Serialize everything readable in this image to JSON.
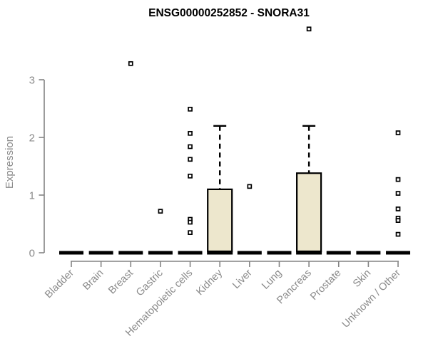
{
  "chart_data": {
    "type": "boxplot",
    "title": "ENSG00000252852 - SNORA31",
    "ylabel": "Expression",
    "xlabel": "",
    "ylim": [
      0,
      3.95
    ],
    "yticks": [
      0,
      1,
      2,
      3
    ],
    "grid": false,
    "legend": "none",
    "colors": {
      "box_fill": "#EDE7CD",
      "box_stroke": "#000000",
      "median": "#000000",
      "outlier_stroke": "#000000",
      "outlier_fill": "#ffffff",
      "axis": "#848484",
      "text_gray": "#8A8A8A",
      "title": "#000000",
      "background": "#ffffff"
    },
    "categories": [
      "Bladder",
      "Brain",
      "Breast",
      "Gastric",
      "Hematopoietic cells",
      "Kidney",
      "Liver",
      "Lung",
      "Pancreas",
      "Prostate",
      "Skin",
      "Unknown / Other"
    ],
    "boxes": [
      {
        "category": "Bladder",
        "q1": 0,
        "median": 0,
        "q3": 0,
        "whisker_low": 0,
        "whisker_high": 0,
        "outliers": []
      },
      {
        "category": "Brain",
        "q1": 0,
        "median": 0,
        "q3": 0,
        "whisker_low": 0,
        "whisker_high": 0,
        "outliers": []
      },
      {
        "category": "Breast",
        "q1": 0,
        "median": 0,
        "q3": 0,
        "whisker_low": 0,
        "whisker_high": 0,
        "outliers": [
          3.28
        ]
      },
      {
        "category": "Gastric",
        "q1": 0,
        "median": 0,
        "q3": 0,
        "whisker_low": 0,
        "whisker_high": 0,
        "outliers": [
          0.72
        ]
      },
      {
        "category": "Hematopoietic cells",
        "q1": 0,
        "median": 0,
        "q3": 0,
        "whisker_low": 0,
        "whisker_high": 0,
        "outliers": [
          2.49,
          2.07,
          1.84,
          1.62,
          1.33,
          0.58,
          0.53,
          0.35
        ]
      },
      {
        "category": "Kidney",
        "q1": 0,
        "median": 0,
        "q3": 1.1,
        "whisker_low": 0,
        "whisker_high": 2.2,
        "outliers": []
      },
      {
        "category": "Liver",
        "q1": 0,
        "median": 0,
        "q3": 0,
        "whisker_low": 0,
        "whisker_high": 0,
        "outliers": [
          1.15
        ]
      },
      {
        "category": "Lung",
        "q1": 0,
        "median": 0,
        "q3": 0,
        "whisker_low": 0,
        "whisker_high": 0,
        "outliers": []
      },
      {
        "category": "Pancreas",
        "q1": 0,
        "median": 0,
        "q3": 1.38,
        "whisker_low": 0,
        "whisker_high": 2.2,
        "outliers": [
          3.88
        ]
      },
      {
        "category": "Prostate",
        "q1": 0,
        "median": 0,
        "q3": 0,
        "whisker_low": 0,
        "whisker_high": 0,
        "outliers": []
      },
      {
        "category": "Skin",
        "q1": 0,
        "median": 0,
        "q3": 0,
        "whisker_low": 0,
        "whisker_high": 0,
        "outliers": []
      },
      {
        "category": "Unknown / Other",
        "q1": 0,
        "median": 0,
        "q3": 0,
        "whisker_low": 0,
        "whisker_high": 0,
        "outliers": [
          2.08,
          1.27,
          1.03,
          0.76,
          0.6,
          0.56,
          0.32
        ]
      }
    ]
  }
}
